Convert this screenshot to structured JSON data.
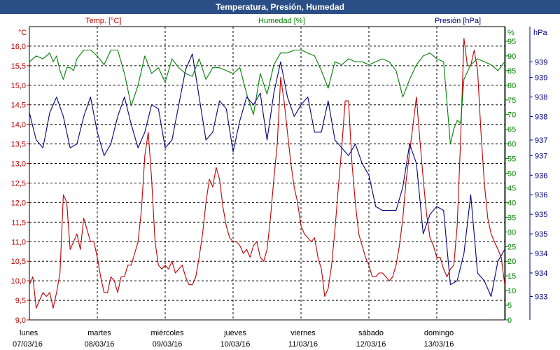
{
  "title": "Temperatura, Presión, Humedad",
  "chart_data": {
    "type": "line",
    "title": "Temperatura, Presión, Humedad",
    "axes": {
      "temp": {
        "label": "Temp. [°C]",
        "unit": "°C",
        "ylim": [
          9.0,
          16.5
        ],
        "ticks": [
          "16,0",
          "15,5",
          "15,0",
          "14,5",
          "14,0",
          "13,5",
          "13,0",
          "12,5",
          "12,0",
          "11,5",
          "11,0",
          "10,5",
          "10,0",
          "9,5",
          "9,0"
        ],
        "tick_values": [
          16.0,
          15.5,
          15.0,
          14.5,
          14.0,
          13.5,
          13.0,
          12.5,
          12.0,
          11.5,
          11.0,
          10.5,
          10.0,
          9.5,
          9.0
        ],
        "color": "#c00000"
      },
      "hum": {
        "label": "Humedad [%]",
        "unit": "%",
        "ylim": [
          0,
          100
        ],
        "ticks": [
          "95",
          "90",
          "85",
          "80",
          "75",
          "70",
          "65",
          "60",
          "55",
          "50",
          "45",
          "40",
          "35",
          "30",
          "25",
          "20",
          "15",
          "10",
          "5",
          "0"
        ],
        "tick_values": [
          95,
          90,
          85,
          80,
          75,
          70,
          65,
          60,
          55,
          50,
          45,
          40,
          35,
          30,
          25,
          20,
          15,
          10,
          5,
          0
        ],
        "color": "#008000"
      },
      "pres": {
        "label": "Presión [hPa]",
        "unit": "hPa",
        "ylim": [
          932.8,
          940.3
        ],
        "ticks": [
          "939",
          "939",
          "938",
          "938",
          "937",
          "937",
          "936",
          "936",
          "935",
          "935",
          "934",
          "934",
          "933"
        ],
        "tick_values": [
          939.4,
          939.0,
          938.5,
          938.0,
          937.4,
          937.0,
          936.5,
          936.0,
          935.5,
          935.0,
          934.5,
          934.0,
          933.4
        ],
        "color": "#000080"
      }
    },
    "x_labels": [
      {
        "day": "lunes",
        "date": "07/03/16"
      },
      {
        "day": "martes",
        "date": "08/03/16"
      },
      {
        "day": "miércoles",
        "date": "09/03/16"
      },
      {
        "day": "jueves",
        "date": "10/03/16"
      },
      {
        "day": "viernes",
        "date": "11/03/16"
      },
      {
        "day": "sábado",
        "date": "12/03/16"
      },
      {
        "day": "domingo",
        "date": "13/03/16"
      }
    ],
    "x_range_days": [
      0,
      7
    ],
    "grid": true,
    "series": [
      {
        "name": "Temp. [°C]",
        "axis": "temp",
        "color": "#c00000",
        "x": [
          0,
          0.05,
          0.1,
          0.15,
          0.2,
          0.25,
          0.3,
          0.35,
          0.4,
          0.45,
          0.5,
          0.55,
          0.6,
          0.65,
          0.7,
          0.75,
          0.8,
          0.85,
          0.9,
          0.95,
          1.0,
          1.05,
          1.1,
          1.15,
          1.2,
          1.25,
          1.3,
          1.35,
          1.4,
          1.45,
          1.5,
          1.55,
          1.6,
          1.65,
          1.7,
          1.75,
          1.8,
          1.85,
          1.9,
          1.95,
          2.0,
          2.05,
          2.1,
          2.15,
          2.2,
          2.25,
          2.3,
          2.35,
          2.4,
          2.45,
          2.5,
          2.55,
          2.6,
          2.65,
          2.7,
          2.75,
          2.8,
          2.85,
          2.9,
          2.95,
          3.0,
          3.05,
          3.1,
          3.15,
          3.2,
          3.25,
          3.3,
          3.35,
          3.4,
          3.45,
          3.5,
          3.55,
          3.6,
          3.65,
          3.7,
          3.75,
          3.8,
          3.85,
          3.9,
          3.95,
          4.0,
          4.05,
          4.1,
          4.15,
          4.2,
          4.25,
          4.3,
          4.35,
          4.4,
          4.45,
          4.5,
          4.55,
          4.6,
          4.65,
          4.7,
          4.75,
          4.8,
          4.85,
          4.9,
          4.95,
          5.0,
          5.05,
          5.1,
          5.15,
          5.2,
          5.25,
          5.3,
          5.35,
          5.4,
          5.45,
          5.5,
          5.55,
          5.6,
          5.65,
          5.7,
          5.75,
          5.8,
          5.85,
          5.9,
          5.95,
          6.0,
          6.05,
          6.1,
          6.15,
          6.2,
          6.25,
          6.3,
          6.35,
          6.4,
          6.45,
          6.5,
          6.55,
          6.6,
          6.65,
          6.7,
          6.75,
          6.8,
          6.85,
          6.9,
          6.95,
          7.0
        ],
        "values": [
          9.9,
          10.1,
          9.3,
          9.5,
          9.7,
          9.6,
          9.7,
          9.3,
          9.7,
          10.2,
          12.2,
          12.0,
          10.8,
          11.0,
          11.2,
          10.8,
          11.6,
          11.3,
          11.0,
          11.0,
          10.6,
          10.1,
          9.7,
          9.7,
          10.1,
          10.0,
          9.7,
          10.1,
          10.1,
          10.4,
          10.4,
          10.7,
          11.0,
          11.8,
          13.2,
          13.8,
          12.6,
          11.0,
          10.4,
          10.3,
          10.4,
          10.3,
          10.5,
          10.2,
          10.3,
          10.4,
          10.1,
          9.9,
          9.9,
          10.1,
          10.6,
          11.2,
          12.0,
          12.6,
          12.4,
          12.9,
          12.6,
          11.9,
          11.4,
          11.1,
          11.0,
          11.0,
          10.9,
          10.7,
          10.8,
          10.6,
          10.9,
          11.0,
          10.6,
          10.5,
          10.8,
          11.6,
          12.6,
          13.5,
          15.2,
          14.6,
          13.8,
          13.0,
          12.4,
          12.0,
          11.4,
          11.2,
          11.1,
          11.0,
          11.1,
          10.6,
          10.3,
          9.6,
          9.8,
          10.4,
          11.3,
          12.4,
          13.4,
          14.6,
          14.6,
          13.0,
          12.0,
          11.2,
          10.9,
          10.6,
          10.4,
          10.1,
          10.1,
          10.2,
          10.2,
          10.1,
          10.0,
          10.1,
          10.4,
          10.9,
          11.6,
          12.6,
          13.3,
          14.0,
          14.7,
          13.6,
          12.6,
          11.7,
          11.1,
          10.9,
          10.6,
          10.6,
          10.3,
          10.1,
          10.3,
          10.4,
          11.4,
          13.6,
          16.2,
          15.5,
          15.5,
          15.9,
          15.4,
          13.8,
          12.5,
          11.6,
          11.2,
          11.0,
          10.8,
          10.6,
          9.9
        ]
      },
      {
        "name": "Humedad [%]",
        "axis": "hum",
        "color": "#008000",
        "x": [
          0,
          0.1,
          0.2,
          0.3,
          0.35,
          0.4,
          0.45,
          0.5,
          0.55,
          0.6,
          0.65,
          0.7,
          0.8,
          0.9,
          1.0,
          1.1,
          1.2,
          1.3,
          1.4,
          1.5,
          1.6,
          1.7,
          1.8,
          1.9,
          2.0,
          2.1,
          2.2,
          2.3,
          2.4,
          2.5,
          2.6,
          2.7,
          2.8,
          2.9,
          3.0,
          3.1,
          3.2,
          3.3,
          3.4,
          3.5,
          3.6,
          3.7,
          3.8,
          3.9,
          4.0,
          4.1,
          4.2,
          4.3,
          4.4,
          4.5,
          4.6,
          4.7,
          4.8,
          4.9,
          5.0,
          5.1,
          5.2,
          5.3,
          5.4,
          5.5,
          5.6,
          5.7,
          5.8,
          5.9,
          6.0,
          6.1,
          6.2,
          6.25,
          6.3,
          6.35,
          6.4,
          6.5,
          6.6,
          6.7,
          6.8,
          6.9,
          7.0
        ],
        "values": [
          88,
          90,
          89,
          91,
          88,
          90,
          85,
          82,
          86,
          86,
          85,
          89,
          92,
          92,
          90,
          87,
          92,
          92,
          84,
          73,
          80,
          90,
          84,
          86,
          81,
          89,
          86,
          84,
          83,
          89,
          82,
          86,
          86,
          85,
          84,
          86,
          77,
          70,
          84,
          77,
          87,
          91,
          91,
          92,
          92,
          91,
          90,
          85,
          79,
          88,
          87,
          89,
          88,
          88,
          87,
          88,
          89,
          88,
          85,
          76,
          82,
          87,
          90,
          91,
          89,
          88,
          60,
          65,
          68,
          67,
          82,
          87,
          89,
          88,
          87,
          85,
          88
        ]
      },
      {
        "name": "Presión [hPa]",
        "axis": "pres",
        "color": "#000080",
        "x": [
          0,
          0.1,
          0.2,
          0.3,
          0.4,
          0.5,
          0.6,
          0.7,
          0.8,
          0.9,
          1.0,
          1.1,
          1.2,
          1.3,
          1.4,
          1.5,
          1.6,
          1.7,
          1.8,
          1.9,
          2.0,
          2.1,
          2.2,
          2.3,
          2.4,
          2.5,
          2.6,
          2.7,
          2.8,
          2.9,
          3.0,
          3.1,
          3.2,
          3.3,
          3.4,
          3.5,
          3.6,
          3.7,
          3.8,
          3.9,
          4.0,
          4.1,
          4.2,
          4.3,
          4.4,
          4.5,
          4.6,
          4.7,
          4.8,
          4.9,
          5.0,
          5.1,
          5.2,
          5.3,
          5.4,
          5.5,
          5.6,
          5.7,
          5.8,
          5.9,
          6.0,
          6.1,
          6.2,
          6.3,
          6.4,
          6.5,
          6.6,
          6.7,
          6.8,
          6.9,
          7.0
        ],
        "values": [
          938.1,
          937.4,
          937.2,
          938.1,
          938.5,
          938.0,
          937.2,
          937.3,
          938.0,
          938.5,
          937.6,
          937.0,
          937.3,
          938.0,
          938.5,
          937.8,
          937.2,
          937.6,
          938.3,
          938.2,
          937.2,
          937.4,
          938.3,
          939.2,
          939.6,
          938.5,
          937.4,
          937.6,
          938.4,
          938.2,
          937.1,
          937.9,
          938.5,
          938.3,
          938.6,
          937.4,
          938.6,
          939.4,
          938.5,
          938.0,
          938.3,
          938.5,
          937.6,
          937.6,
          938.4,
          937.4,
          937.2,
          937.0,
          937.3,
          936.8,
          936.5,
          935.7,
          935.6,
          935.6,
          935.6,
          936.2,
          937.3,
          936.8,
          935.0,
          935.5,
          935.7,
          935.6,
          933.7,
          933.8,
          934.5,
          936.0,
          934.0,
          933.8,
          933.4,
          934.3,
          934.6
        ]
      }
    ]
  }
}
